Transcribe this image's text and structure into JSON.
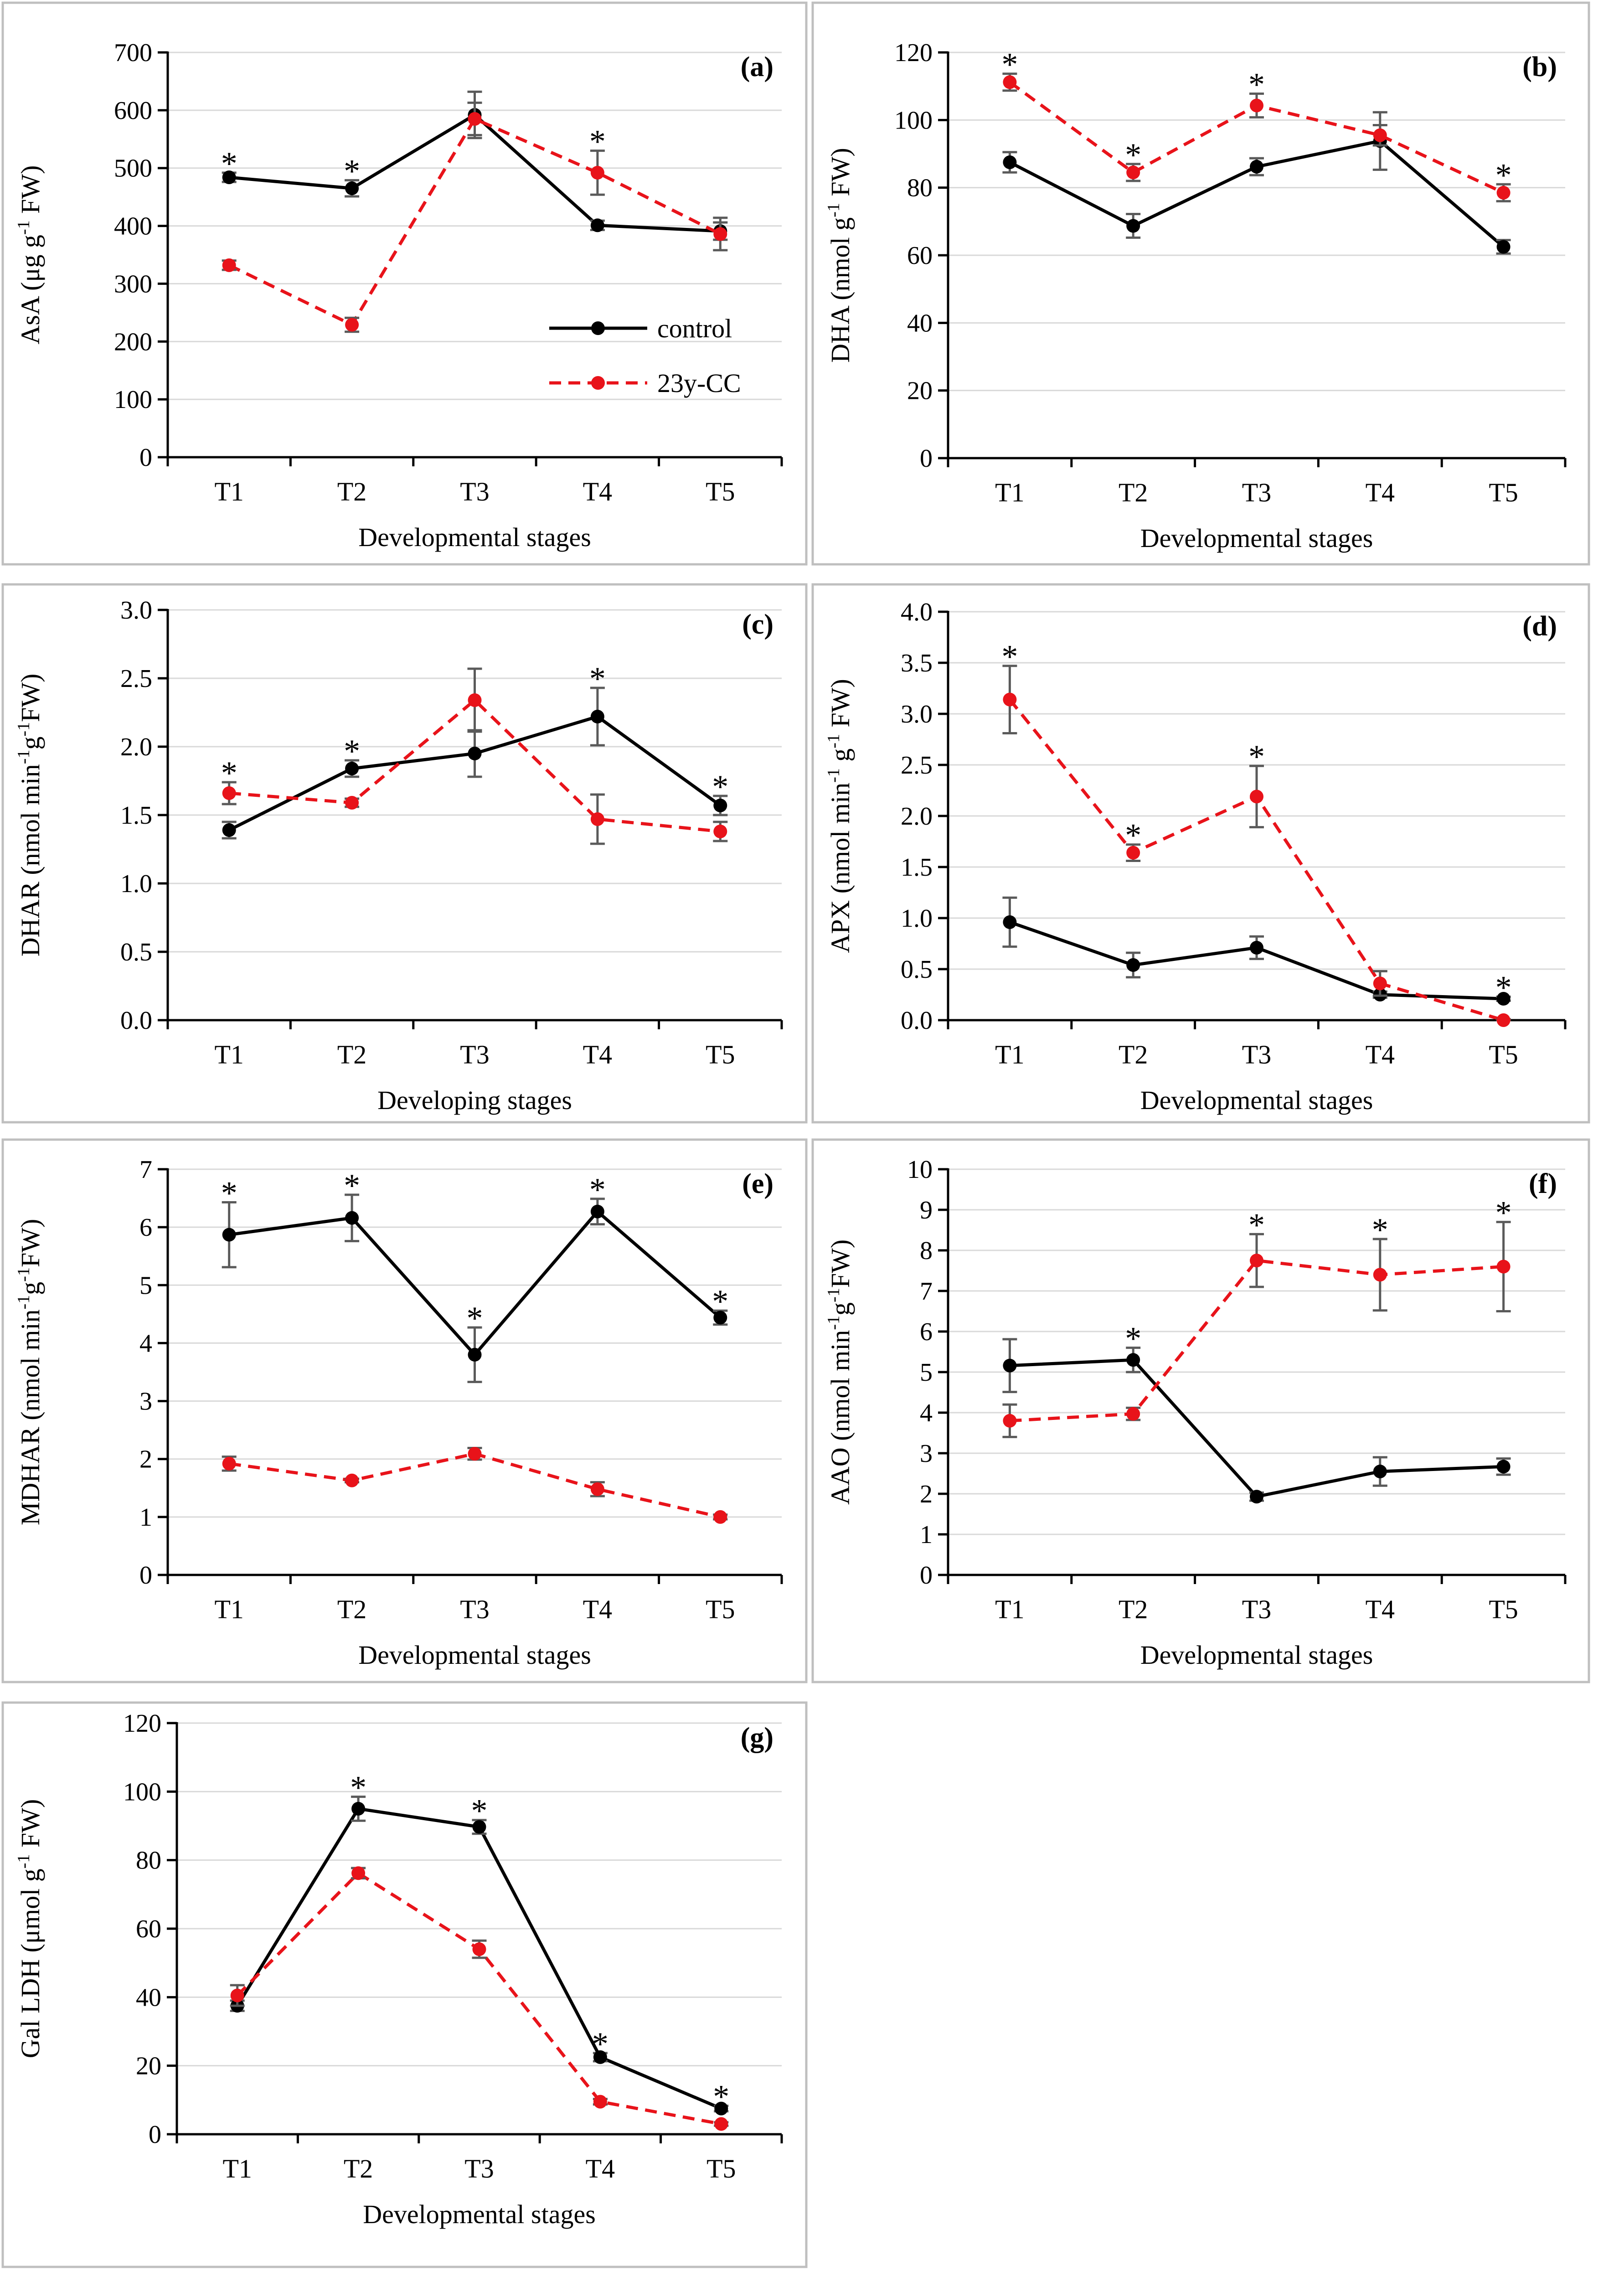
{
  "colors": {
    "control": "#000000",
    "treatment": "#e8131a",
    "error_bar": "#5a5a5a",
    "grid": "#d9d9d9",
    "frame": "#bfbfbf"
  },
  "legend": {
    "control": "control",
    "treatment": "23y-CC"
  },
  "chart_data": [
    {
      "type": "line",
      "panel": "(a)",
      "categories": [
        "T1",
        "T2",
        "T3",
        "T4",
        "T5"
      ],
      "xlabel": "Developmental stages",
      "ylabel_parts": [
        "AsA (μg g",
        "-1",
        " FW)"
      ],
      "ylim": [
        0,
        700
      ],
      "yticks": [
        "0",
        "100",
        "200",
        "300",
        "400",
        "500",
        "600",
        "700"
      ],
      "series": [
        {
          "name": "control",
          "values": [
            484,
            465,
            592,
            401,
            391
          ],
          "errors": [
            8,
            14,
            40,
            8,
            15
          ]
        },
        {
          "name": "23y-CC",
          "values": [
            332,
            229,
            585,
            492,
            386
          ],
          "errors": [
            8,
            12,
            28,
            38,
            28
          ]
        }
      ],
      "significant": [
        {
          "index": 0,
          "value": "*"
        },
        {
          "index": 1,
          "value": "*"
        },
        {
          "index": 3,
          "value": "*"
        }
      ],
      "show_legend": true
    },
    {
      "type": "line",
      "panel": "(b)",
      "categories": [
        "T1",
        "T2",
        "T3",
        "T4",
        "T5"
      ],
      "xlabel": "Developmental stages",
      "ylabel_parts": [
        "DHA (nmol g",
        "-1",
        " FW)"
      ],
      "ylim": [
        0,
        120
      ],
      "yticks": [
        "0",
        "20",
        "40",
        "60",
        "80",
        "100",
        "120"
      ],
      "series": [
        {
          "name": "control",
          "values": [
            87.5,
            68.7,
            86.2,
            93.8,
            62.5
          ],
          "errors": [
            3,
            3.5,
            2.5,
            8.5,
            2
          ]
        },
        {
          "name": "23y-CC",
          "values": [
            111.2,
            84.5,
            104.3,
            95.5,
            78.5
          ],
          "errors": [
            2.5,
            2.5,
            3.5,
            3,
            2.5
          ]
        }
      ],
      "significant": [
        {
          "index": 0,
          "value": "*"
        },
        {
          "index": 1,
          "value": "*"
        },
        {
          "index": 2,
          "value": "*"
        },
        {
          "index": 4,
          "value": "*"
        }
      ],
      "show_legend": false
    },
    {
      "type": "line",
      "panel": "(c)",
      "categories": [
        "T1",
        "T2",
        "T3",
        "T4",
        "T5"
      ],
      "xlabel": "Developing stages",
      "ylabel_parts": [
        "DHAR (nmol min",
        "-1",
        "g",
        "-1",
        "FW)"
      ],
      "ylim": [
        0,
        3
      ],
      "yticks": [
        "0.0",
        "0.5",
        "1.0",
        "1.5",
        "2.0",
        "2.5",
        "3.0"
      ],
      "series": [
        {
          "name": "control",
          "values": [
            1.39,
            1.84,
            1.95,
            2.22,
            1.57
          ],
          "errors": [
            0.06,
            0.06,
            0.17,
            0.21,
            0.07
          ]
        },
        {
          "name": "23y-CC",
          "values": [
            1.66,
            1.59,
            2.34,
            1.47,
            1.38
          ],
          "errors": [
            0.08,
            0.03,
            0.23,
            0.18,
            0.07
          ]
        }
      ],
      "significant": [
        {
          "index": 0,
          "value": "*"
        },
        {
          "index": 1,
          "value": "*"
        },
        {
          "index": 3,
          "value": "*"
        },
        {
          "index": 4,
          "value": "*"
        }
      ],
      "show_legend": false
    },
    {
      "type": "line",
      "panel": "(d)",
      "categories": [
        "T1",
        "T2",
        "T3",
        "T4",
        "T5"
      ],
      "xlabel": "Developmental stages",
      "ylabel_parts": [
        "APX (nmol min",
        "-1",
        " g",
        "-1",
        " FW)"
      ],
      "ylim": [
        0,
        4
      ],
      "yticks": [
        "0.0",
        "0.5",
        "1.0",
        "1.5",
        "2.0",
        "2.5",
        "3.0",
        "3.5",
        "4.0"
      ],
      "series": [
        {
          "name": "control",
          "values": [
            0.96,
            0.54,
            0.71,
            0.25,
            0.21
          ],
          "errors": [
            0.24,
            0.12,
            0.11,
            0.03,
            0.02
          ]
        },
        {
          "name": "23y-CC",
          "values": [
            3.14,
            1.64,
            2.19,
            0.36,
            0.0
          ],
          "errors": [
            0.33,
            0.08,
            0.3,
            0.12,
            0.01
          ]
        }
      ],
      "significant": [
        {
          "index": 0,
          "value": "*"
        },
        {
          "index": 1,
          "value": "*"
        },
        {
          "index": 2,
          "value": "*"
        },
        {
          "index": 4,
          "value": "*"
        }
      ],
      "show_legend": false
    },
    {
      "type": "line",
      "panel": "(e)",
      "categories": [
        "T1",
        "T2",
        "T3",
        "T4",
        "T5"
      ],
      "xlabel": "Developmental stages",
      "ylabel_parts": [
        "MDHAR (nmol min",
        "-1",
        "g",
        "-1",
        "FW)"
      ],
      "ylim": [
        0,
        7
      ],
      "yticks": [
        "0",
        "1",
        "2",
        "3",
        "4",
        "5",
        "6",
        "7"
      ],
      "series": [
        {
          "name": "control",
          "values": [
            5.87,
            6.16,
            3.8,
            6.27,
            4.44
          ],
          "errors": [
            0.56,
            0.4,
            0.47,
            0.22,
            0.12
          ]
        },
        {
          "name": "23y-CC",
          "values": [
            1.92,
            1.63,
            2.09,
            1.48,
            1.0
          ],
          "errors": [
            0.12,
            0.03,
            0.1,
            0.12,
            0.04
          ]
        }
      ],
      "significant": [
        {
          "index": 0,
          "value": "*"
        },
        {
          "index": 1,
          "value": "*"
        },
        {
          "index": 2,
          "value": "*"
        },
        {
          "index": 3,
          "value": "*"
        },
        {
          "index": 4,
          "value": "*"
        }
      ],
      "show_legend": false
    },
    {
      "type": "line",
      "panel": "(f)",
      "categories": [
        "T1",
        "T2",
        "T3",
        "T4",
        "T5"
      ],
      "xlabel": "Developmental stages",
      "ylabel_parts": [
        "AAO (nmol min",
        "-1",
        "g",
        "-1",
        "FW)"
      ],
      "ylim": [
        0,
        10
      ],
      "yticks": [
        "0",
        "1",
        "2",
        "3",
        "4",
        "5",
        "6",
        "7",
        "8",
        "9",
        "10"
      ],
      "series": [
        {
          "name": "control",
          "values": [
            5.16,
            5.3,
            1.93,
            2.55,
            2.67
          ],
          "errors": [
            0.65,
            0.3,
            0.1,
            0.35,
            0.2
          ]
        },
        {
          "name": "23y-CC",
          "values": [
            3.8,
            3.97,
            7.75,
            7.4,
            7.6
          ],
          "errors": [
            0.4,
            0.15,
            0.65,
            0.88,
            1.1
          ]
        }
      ],
      "significant": [
        {
          "index": 1,
          "value": "*"
        },
        {
          "index": 2,
          "value": "*"
        },
        {
          "index": 3,
          "value": "*"
        },
        {
          "index": 4,
          "value": "*"
        }
      ],
      "show_legend": false
    },
    {
      "type": "line",
      "panel": "(g)",
      "categories": [
        "T1",
        "T2",
        "T3",
        "T4",
        "T5"
      ],
      "xlabel": "Developmental stages",
      "ylabel_parts": [
        "Gal LDH (μmol g",
        "-1",
        " FW)"
      ],
      "ylim": [
        0,
        120
      ],
      "yticks": [
        "0",
        "20",
        "40",
        "60",
        "80",
        "100",
        "120"
      ],
      "series": [
        {
          "name": "control",
          "values": [
            37.5,
            95.0,
            89.7,
            22.5,
            7.5
          ],
          "errors": [
            1.5,
            3.5,
            2,
            1.2,
            0.8
          ]
        },
        {
          "name": "23y-CC",
          "values": [
            40.5,
            76.2,
            54.0,
            9.5,
            3.0
          ],
          "errors": [
            3,
            1.5,
            2.5,
            0.8,
            0.5
          ]
        }
      ],
      "significant": [
        {
          "index": 1,
          "value": "*"
        },
        {
          "index": 2,
          "value": "*"
        },
        {
          "index": 3,
          "value": "*"
        },
        {
          "index": 4,
          "value": "*"
        }
      ],
      "show_legend": false
    }
  ]
}
